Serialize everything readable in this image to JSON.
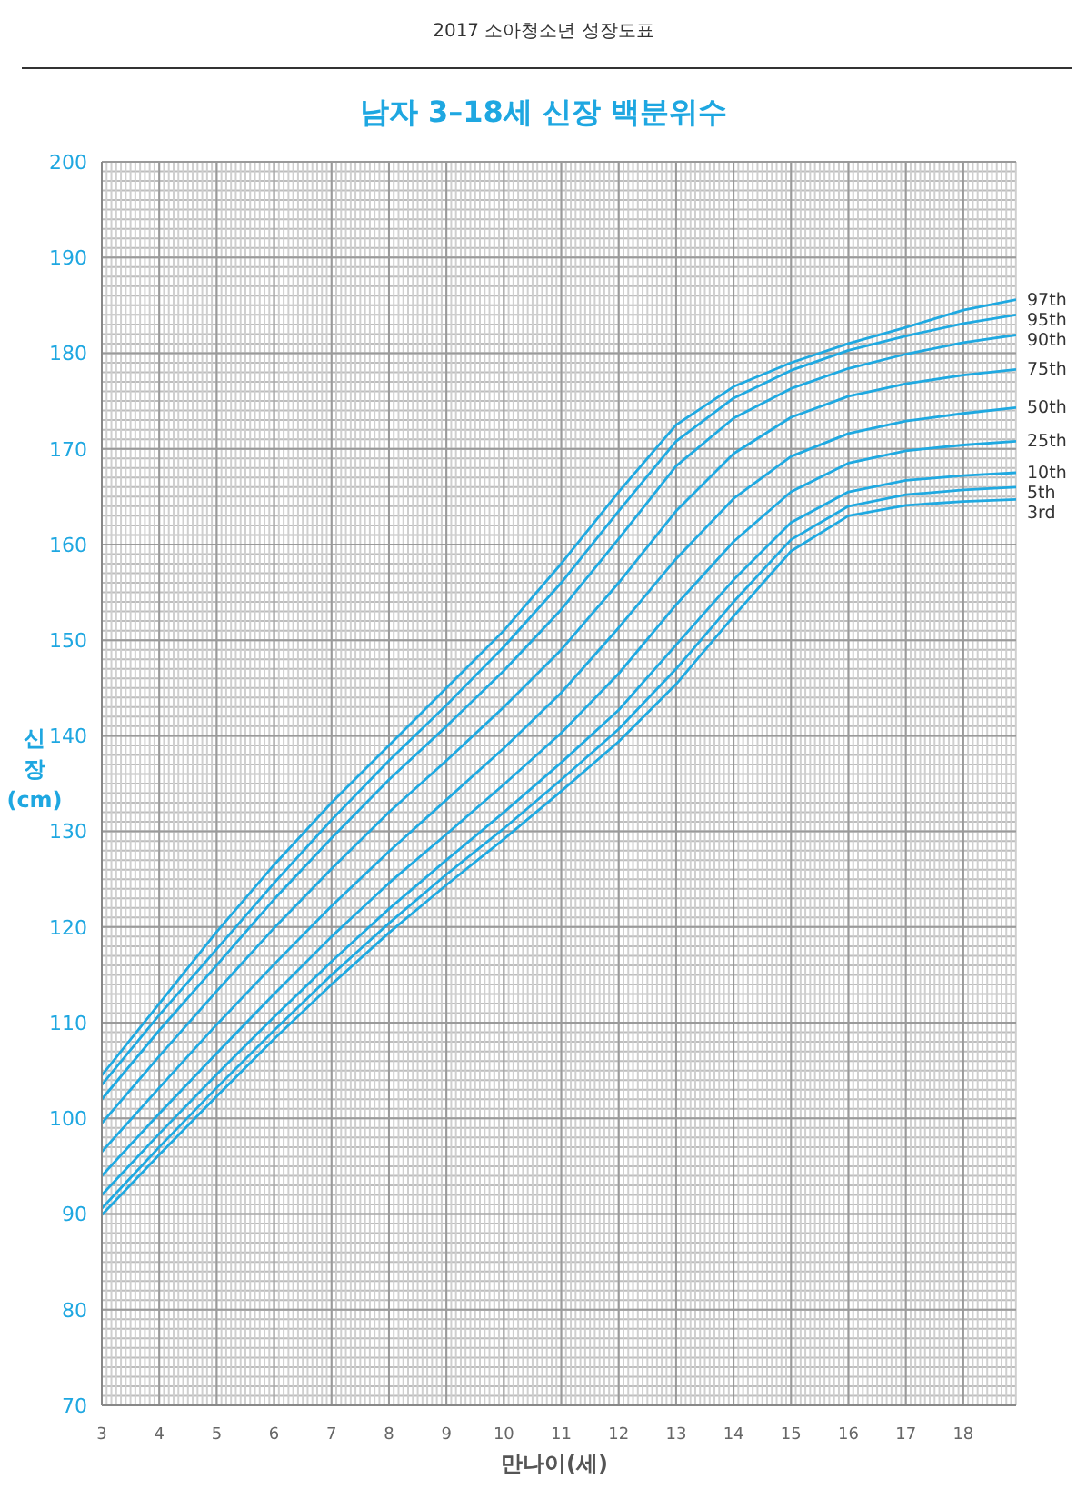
{
  "chart_data": {
    "type": "line",
    "title": "남자 3–18세 신장 백분위수",
    "subtitle": "2017 소아청소년 성장도표",
    "xlabel": "만나이(세)",
    "ylabel": "신장(cm)",
    "x": [
      3,
      4,
      5,
      6,
      7,
      8,
      9,
      10,
      11,
      12,
      13,
      14,
      15,
      16,
      17,
      18,
      18.92
    ],
    "xlim": [
      3,
      18.92
    ],
    "xticks": [
      3,
      4,
      5,
      6,
      7,
      8,
      9,
      10,
      11,
      12,
      13,
      14,
      15,
      16,
      17,
      18
    ],
    "ylim": [
      70,
      200
    ],
    "yticks": [
      70,
      80,
      90,
      100,
      110,
      120,
      130,
      140,
      150,
      160,
      170,
      180,
      190,
      200
    ],
    "grid": true,
    "marker": "none",
    "line_style": "solid",
    "series": [
      {
        "name": "97th",
        "color": "#1fa9e1",
        "values": [
          104.5,
          112,
          119.5,
          126.5,
          133,
          139,
          145,
          151,
          158,
          165.5,
          172.5,
          176.5,
          179,
          181,
          182.7,
          184.5,
          185.6
        ]
      },
      {
        "name": "95th",
        "color": "#1fa9e1",
        "values": [
          103.5,
          110.8,
          117.7,
          124.6,
          131.2,
          137.4,
          143.2,
          149.3,
          156,
          163.5,
          170.8,
          175.3,
          178.2,
          180.3,
          181.8,
          183.1,
          184
        ]
      },
      {
        "name": "90th",
        "color": "#1fa9e1",
        "values": [
          102,
          109.2,
          116,
          122.9,
          129.3,
          135.4,
          141,
          146.8,
          153.2,
          160.6,
          168.2,
          173.2,
          176.3,
          178.4,
          179.9,
          181.1,
          181.9
        ]
      },
      {
        "name": "75th",
        "color": "#1fa9e1",
        "values": [
          99.5,
          106.5,
          113.3,
          119.9,
          126.1,
          132,
          137.4,
          143,
          149,
          156,
          163.5,
          169.5,
          173.3,
          175.5,
          176.8,
          177.7,
          178.3
        ]
      },
      {
        "name": "50th",
        "color": "#1fa9e1",
        "values": [
          96.5,
          103.2,
          109.8,
          116.1,
          122.2,
          127.9,
          133.3,
          138.7,
          144.5,
          151.3,
          158.5,
          164.8,
          169.2,
          171.6,
          172.9,
          173.7,
          174.3
        ]
      },
      {
        "name": "25th",
        "color": "#1fa9e1",
        "values": [
          94,
          100.5,
          106.8,
          113,
          119,
          124.6,
          129.7,
          134.9,
          140.3,
          146.5,
          153.7,
          160.3,
          165.5,
          168.5,
          169.8,
          170.4,
          170.8
        ]
      },
      {
        "name": "10th",
        "color": "#1fa9e1",
        "values": [
          92,
          98.4,
          104.6,
          110.6,
          116.4,
          121.9,
          127,
          132,
          137.2,
          142.7,
          149.5,
          156.3,
          162.3,
          165.5,
          166.7,
          167.2,
          167.5
        ]
      },
      {
        "name": "5th",
        "color": "#1fa9e1",
        "values": [
          90.6,
          97,
          103.2,
          109.2,
          115,
          120.4,
          125.5,
          130.3,
          135.4,
          140.7,
          147,
          154,
          160.5,
          164,
          165.2,
          165.7,
          166
        ]
      },
      {
        "name": "3rd",
        "color": "#1fa9e1",
        "values": [
          89.9,
          96.2,
          102.3,
          108.3,
          114,
          119.4,
          124.4,
          129.2,
          134.2,
          139.4,
          145.4,
          152.5,
          159.3,
          163,
          164.1,
          164.5,
          164.7
        ]
      }
    ]
  }
}
